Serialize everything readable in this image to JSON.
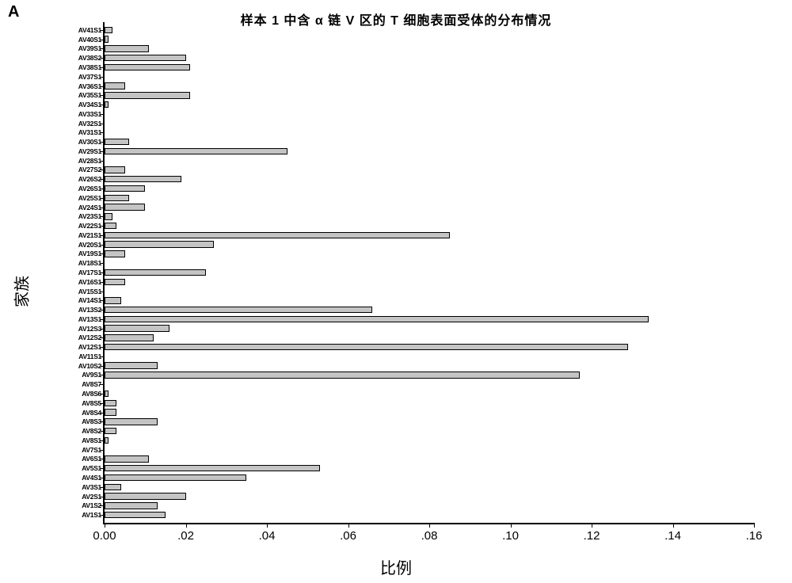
{
  "panel_label": "A",
  "chart": {
    "type": "horizontal-bar",
    "title": "样本 1 中含 α 链 V 区的 T 细胞表面受体的分布情况",
    "title_fontsize": 16,
    "xlabel": "比例",
    "ylabel": "家族",
    "axis_label_fontsize": 20,
    "xlim": [
      0.0,
      0.16
    ],
    "x_ticks": [
      0.0,
      0.02,
      0.04,
      0.06,
      0.08,
      0.1,
      0.12,
      0.14,
      0.16
    ],
    "x_tick_labels": [
      "0.00",
      ".02",
      ".04",
      ".06",
      ".08",
      ".10",
      ".12",
      ".14",
      ".16"
    ],
    "tick_fontsize": 15,
    "bar_color": "#c4c4c4",
    "bar_border_color": "#000000",
    "axis_color": "#000000",
    "background_color": "#ffffff",
    "ylabel_fontsize": 8.5,
    "categories_top_to_bottom": [
      "AV41S1",
      "AV40S1",
      "AV39S1",
      "AV38S2",
      "AV38S1",
      "AV37S1",
      "AV36S1",
      "AV35S1",
      "AV34S1",
      "AV33S1",
      "AV32S1",
      "AV31S1",
      "AV30S1",
      "AV29S1",
      "AV28S1",
      "AV27S2",
      "AV26S2",
      "AV26S1",
      "AV25S1",
      "AV24S1",
      "AV23S1",
      "AV22S1",
      "AV21S1",
      "AV20S1",
      "AV19S1",
      "AV18S1",
      "AV17S1",
      "AV16S1",
      "AV15S1",
      "AV14S1",
      "AV13S2",
      "AV13S1",
      "AV12S3",
      "AV12S2",
      "AV12S1",
      "AV11S1",
      "AV10S2",
      "AV9S1",
      "AV8S7",
      "AV8S6",
      "AV8S5",
      "AV8S4",
      "AV8S3",
      "AV8S2",
      "AV8S1",
      "AV7S1",
      "AV6S1",
      "AV5S1",
      "AV4S1",
      "AV3S1",
      "AV2S1",
      "AV1S2",
      "AV1S1"
    ],
    "values_top_to_bottom": [
      0.002,
      0.001,
      0.011,
      0.02,
      0.021,
      0.0,
      0.005,
      0.021,
      0.001,
      0.0,
      0.0,
      0.0,
      0.006,
      0.045,
      0.0,
      0.005,
      0.019,
      0.01,
      0.006,
      0.01,
      0.002,
      0.003,
      0.085,
      0.027,
      0.005,
      0.0,
      0.025,
      0.005,
      0.0,
      0.004,
      0.066,
      0.134,
      0.016,
      0.012,
      0.129,
      0.0,
      0.013,
      0.117,
      0.0,
      0.001,
      0.003,
      0.003,
      0.013,
      0.003,
      0.001,
      0.0,
      0.011,
      0.053,
      0.035,
      0.004,
      0.02,
      0.013,
      0.015
    ]
  }
}
